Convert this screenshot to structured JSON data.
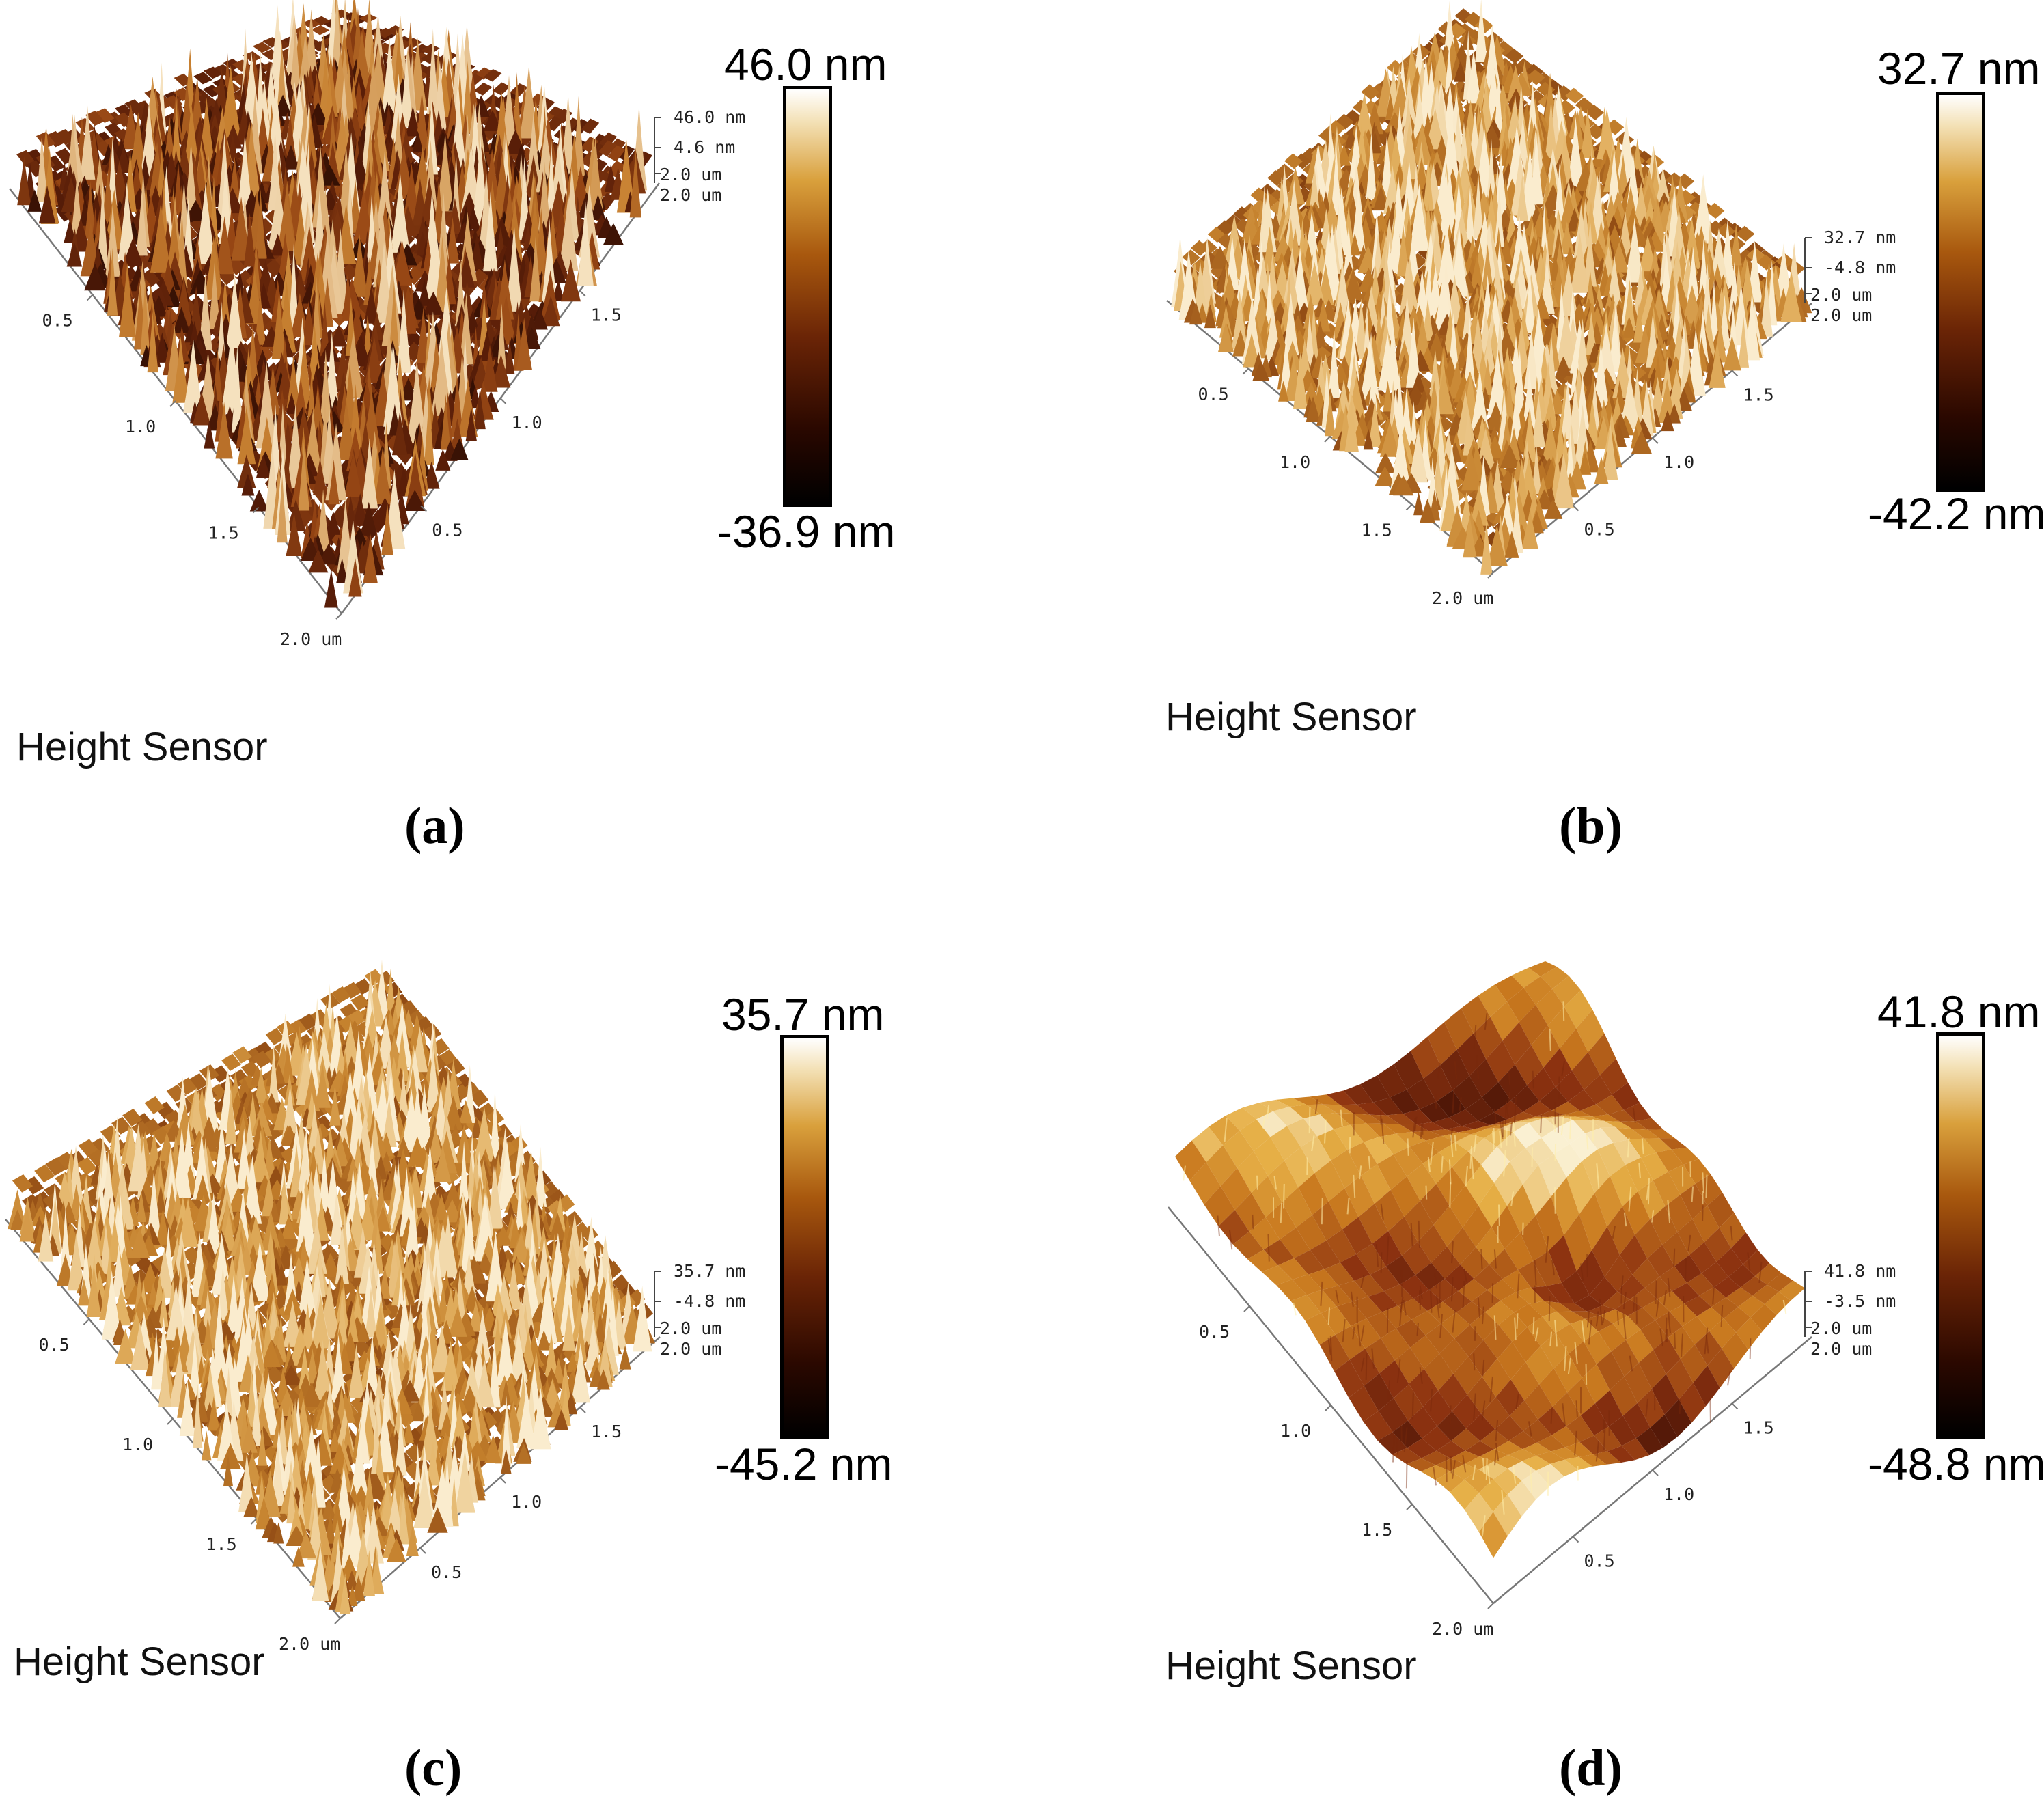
{
  "panels": [
    {
      "id": "a",
      "label": "(a)",
      "sensor": "Height Sensor",
      "colorbar": {
        "max": "46.0 nm",
        "min": "-36.9 nm"
      },
      "z_axis": {
        "top": "46.0 nm",
        "mid": "4.6 nm"
      },
      "axis_end": {
        "upper": "2.0 um",
        "lower": "2.0 um"
      },
      "left_ticks": [
        "0.5",
        "1.0",
        "1.5",
        "2.0 um"
      ],
      "right_ticks": [
        "0.5",
        "1.0",
        "1.5"
      ],
      "surface": {
        "style": "dark-fine",
        "rms_hint": "dark brown, sharp fine peaks"
      }
    },
    {
      "id": "b",
      "label": "(b)",
      "sensor": "Height Sensor",
      "colorbar": {
        "max": "32.7 nm",
        "min": "-42.2 nm"
      },
      "z_axis": {
        "top": "32.7 nm",
        "mid": "-4.8 nm"
      },
      "axis_end": {
        "upper": "2.0 um",
        "lower": "2.0 um"
      },
      "left_ticks": [
        "0.5",
        "1.0",
        "1.5",
        "2.0 um"
      ],
      "right_ticks": [
        "0.5",
        "1.0",
        "1.5"
      ],
      "surface": {
        "style": "light-fine",
        "rms_hint": "golden, dense peaks"
      }
    },
    {
      "id": "c",
      "label": "(c)",
      "sensor": "Height Sensor",
      "colorbar": {
        "max": "35.7 nm",
        "min": "-45.2 nm"
      },
      "z_axis": {
        "top": "35.7 nm",
        "mid": "-4.8 nm"
      },
      "axis_end": {
        "upper": "2.0 um",
        "lower": "2.0 um"
      },
      "left_ticks": [
        "0.5",
        "1.0",
        "1.5",
        "2.0 um"
      ],
      "right_ticks": [
        "0.5",
        "1.0",
        "1.5"
      ],
      "surface": {
        "style": "mid-fine",
        "rms_hint": "golden brown, dense peaks"
      }
    },
    {
      "id": "d",
      "label": "(d)",
      "sensor": "Height Sensor",
      "colorbar": {
        "max": "41.8 nm",
        "min": "-48.8 nm"
      },
      "z_axis": {
        "top": "41.8 nm",
        "mid": "-3.5 nm"
      },
      "axis_end": {
        "upper": "2.0 um",
        "lower": "2.0 um"
      },
      "left_ticks": [
        "0.5",
        "1.0",
        "1.5",
        "2.0 um"
      ],
      "right_ticks": [
        "0.5",
        "1.0",
        "1.5"
      ],
      "surface": {
        "style": "smooth-hills",
        "rms_hint": "broad rolling hills with central pit"
      }
    }
  ]
}
